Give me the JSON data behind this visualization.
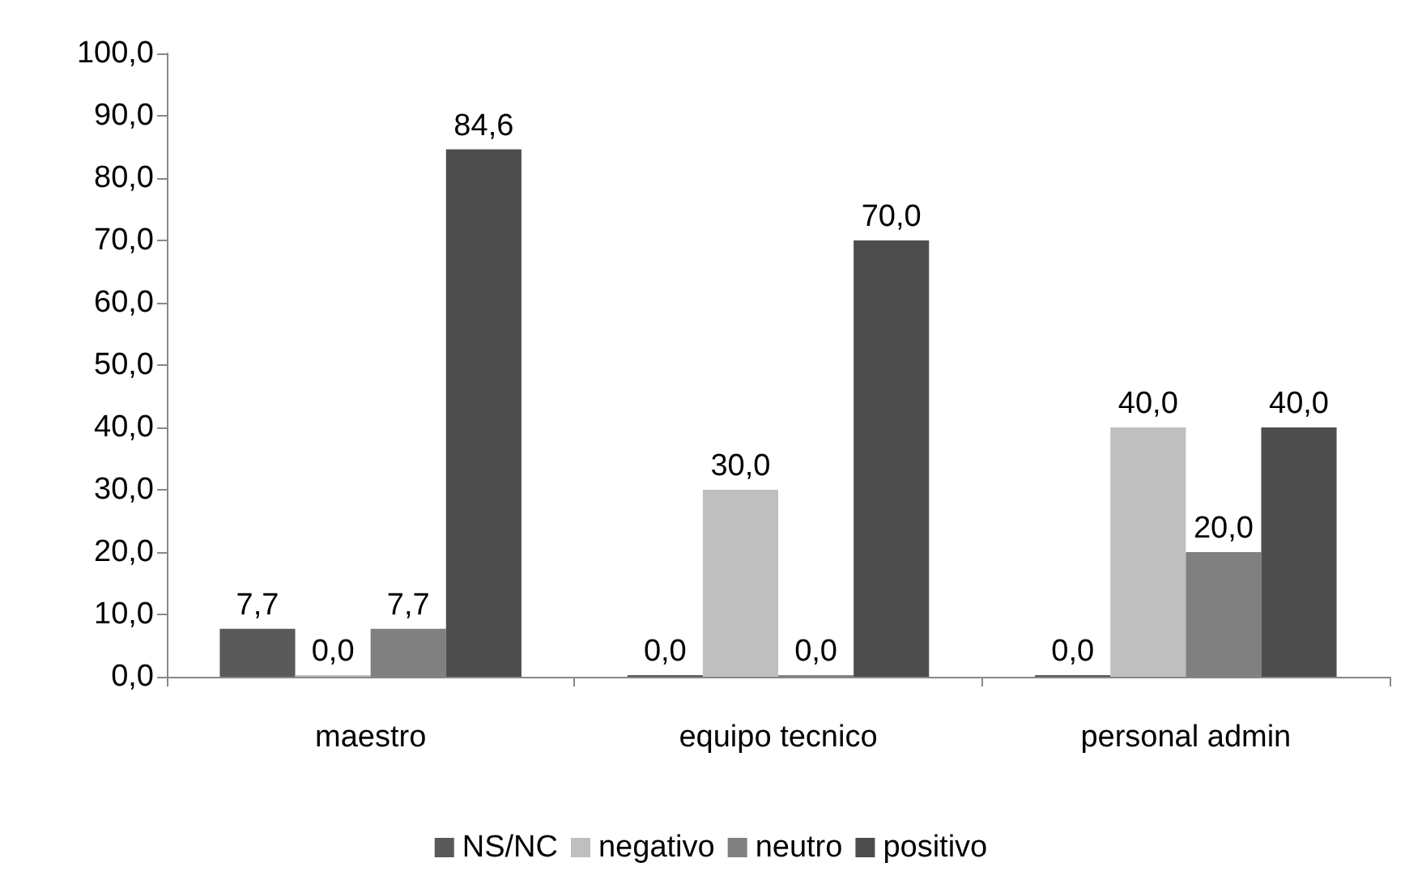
{
  "chart_data": {
    "type": "bar",
    "categories": [
      "maestro",
      "equipo tecnico",
      "personal admin"
    ],
    "series": [
      {
        "name": "NS/NC",
        "color": "#595959",
        "values": [
          7.7,
          0,
          0
        ],
        "value_labels": [
          "7,7",
          "0,0",
          "0,0"
        ]
      },
      {
        "name": "negativo",
        "color": "#bfbfbf",
        "values": [
          0,
          30,
          40
        ],
        "value_labels": [
          "0,0",
          "30,0",
          "40,0"
        ]
      },
      {
        "name": "neutro",
        "color": "#808080",
        "values": [
          7.7,
          0,
          20
        ],
        "value_labels": [
          "7,7",
          "0,0",
          "20,0"
        ]
      },
      {
        "name": "positivo",
        "color": "#4d4d4d",
        "values": [
          84.6,
          70,
          40
        ],
        "value_labels": [
          "84,6",
          "70,0",
          "40,0"
        ]
      }
    ],
    "ylim": [
      0,
      100
    ],
    "yticks": [
      {
        "value": 0,
        "label": "0,0"
      },
      {
        "value": 10,
        "label": "10,0"
      },
      {
        "value": 20,
        "label": "20,0"
      },
      {
        "value": 30,
        "label": "30,0"
      },
      {
        "value": 40,
        "label": "40,0"
      },
      {
        "value": 50,
        "label": "50,0"
      },
      {
        "value": 60,
        "label": "60,0"
      },
      {
        "value": 70,
        "label": "70,0"
      },
      {
        "value": 80,
        "label": "80,0"
      },
      {
        "value": 90,
        "label": "90,0"
      },
      {
        "value": 100,
        "label": "100,0"
      }
    ],
    "grid": false,
    "legend": "bottom"
  }
}
